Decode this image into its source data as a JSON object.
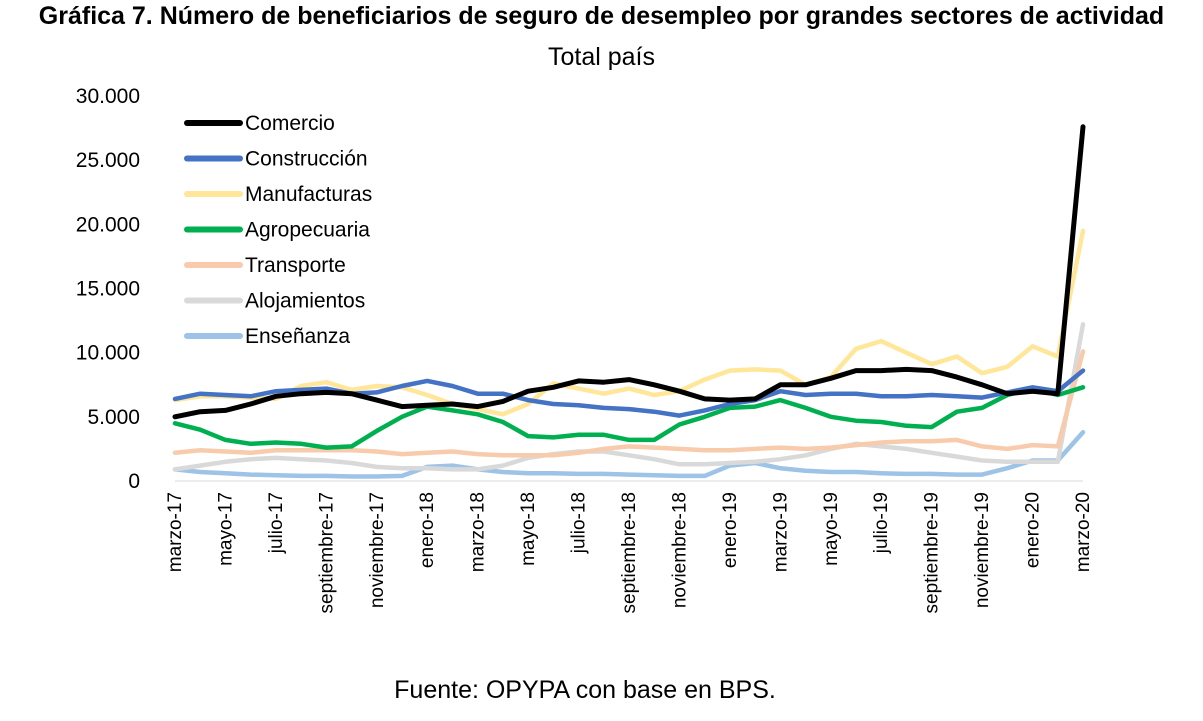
{
  "chart_data": {
    "type": "line",
    "title": "Gráfica 7. Número de beneficiarios de seguro de desempleo por grandes sectores de actividad",
    "subtitle": "Total país",
    "source": "Fuente: OPYPA con base en BPS.",
    "xlabel": "",
    "ylabel": "",
    "ylim": [
      0,
      30000
    ],
    "y_ticks": [
      "0",
      "5.000",
      "10.000",
      "15.000",
      "20.000",
      "25.000",
      "30.000"
    ],
    "x": [
      "marzo-17",
      "abril-17",
      "mayo-17",
      "junio-17",
      "julio-17",
      "agosto-17",
      "septiembre-17",
      "octubre-17",
      "noviembre-17",
      "diciembre-17",
      "enero-18",
      "febrero-18",
      "marzo-18",
      "abril-18",
      "mayo-18",
      "junio-18",
      "julio-18",
      "agosto-18",
      "septiembre-18",
      "octubre-18",
      "noviembre-18",
      "diciembre-18",
      "enero-19",
      "febrero-19",
      "marzo-19",
      "abril-19",
      "mayo-19",
      "junio-19",
      "julio-19",
      "agosto-19",
      "septiembre-19",
      "octubre-19",
      "noviembre-19",
      "diciembre-19",
      "enero-20",
      "febrero-20",
      "marzo-20"
    ],
    "x_tick_labels": [
      "marzo-17",
      "mayo-17",
      "julio-17",
      "septiembre-17",
      "noviembre-17",
      "enero-18",
      "marzo-18",
      "mayo-18",
      "julio-18",
      "septiembre-18",
      "noviembre-18",
      "enero-19",
      "marzo-19",
      "mayo-19",
      "julio-19",
      "septiembre-19",
      "noviembre-19",
      "enero-20",
      "marzo-20"
    ],
    "series": [
      {
        "name": "Comercio",
        "color": "#000000",
        "values": [
          5000,
          5400,
          5500,
          6000,
          6600,
          6800,
          6900,
          6800,
          6300,
          5800,
          5900,
          6000,
          5800,
          6200,
          7000,
          7300,
          7800,
          7700,
          7900,
          7500,
          7000,
          6400,
          6300,
          6400,
          7500,
          7500,
          8000,
          8600,
          8600,
          8700,
          8600,
          8100,
          7500,
          6800,
          7000,
          6800,
          27600
        ]
      },
      {
        "name": "Construcción",
        "color": "#4472C4",
        "values": [
          6400,
          6800,
          6700,
          6600,
          7000,
          7100,
          7200,
          6800,
          6900,
          7400,
          7800,
          7400,
          6800,
          6800,
          6300,
          6000,
          5900,
          5700,
          5600,
          5400,
          5100,
          5500,
          6000,
          6300,
          7000,
          6700,
          6800,
          6800,
          6600,
          6600,
          6700,
          6600,
          6500,
          6900,
          7300,
          7000,
          8600
        ]
      },
      {
        "name": "Manufacturas",
        "color": "#FFE699",
        "values": [
          6300,
          6600,
          6600,
          6500,
          6400,
          7400,
          7700,
          7100,
          7400,
          7300,
          6700,
          6000,
          5600,
          5200,
          6000,
          7600,
          7200,
          6800,
          7200,
          6700,
          7000,
          7900,
          8600,
          8700,
          8600,
          7500,
          8100,
          10300,
          10900,
          10000,
          9100,
          9700,
          8400,
          8900,
          10500,
          9700,
          19500
        ]
      },
      {
        "name": "Agropecuaria",
        "color": "#00B050",
        "values": [
          4500,
          4000,
          3200,
          2900,
          3000,
          2900,
          2600,
          2700,
          3900,
          5000,
          5800,
          5500,
          5200,
          4600,
          3500,
          3400,
          3600,
          3600,
          3200,
          3200,
          4400,
          5000,
          5700,
          5800,
          6300,
          5700,
          5000,
          4700,
          4600,
          4300,
          4200,
          5400,
          5700,
          6700,
          7200,
          6700,
          7300
        ]
      },
      {
        "name": "Transporte",
        "color": "#F8CBAD",
        "values": [
          2200,
          2400,
          2300,
          2200,
          2400,
          2400,
          2400,
          2400,
          2300,
          2100,
          2200,
          2300,
          2100,
          2000,
          2000,
          2000,
          2200,
          2500,
          2700,
          2600,
          2500,
          2400,
          2400,
          2500,
          2600,
          2500,
          2600,
          2800,
          3000,
          3100,
          3100,
          3200,
          2700,
          2500,
          2800,
          2700,
          10100
        ]
      },
      {
        "name": "Alojamientos",
        "color": "#D9D9D9",
        "values": [
          900,
          1200,
          1500,
          1700,
          1800,
          1700,
          1600,
          1400,
          1100,
          1000,
          1000,
          900,
          900,
          1200,
          1800,
          2100,
          2300,
          2300,
          2000,
          1700,
          1300,
          1300,
          1400,
          1500,
          1700,
          2000,
          2500,
          2900,
          2700,
          2500,
          2200,
          1900,
          1600,
          1500,
          1500,
          1500,
          12200
        ]
      },
      {
        "name": "Enseñanza",
        "color": "#9DC3E6",
        "values": [
          900,
          700,
          600,
          500,
          450,
          400,
          400,
          350,
          350,
          400,
          1100,
          1200,
          900,
          700,
          600,
          600,
          550,
          550,
          500,
          450,
          400,
          400,
          1200,
          1400,
          1000,
          800,
          700,
          700,
          600,
          550,
          550,
          500,
          500,
          1000,
          1600,
          1600,
          3800
        ]
      }
    ],
    "legend_position": "top-left"
  }
}
